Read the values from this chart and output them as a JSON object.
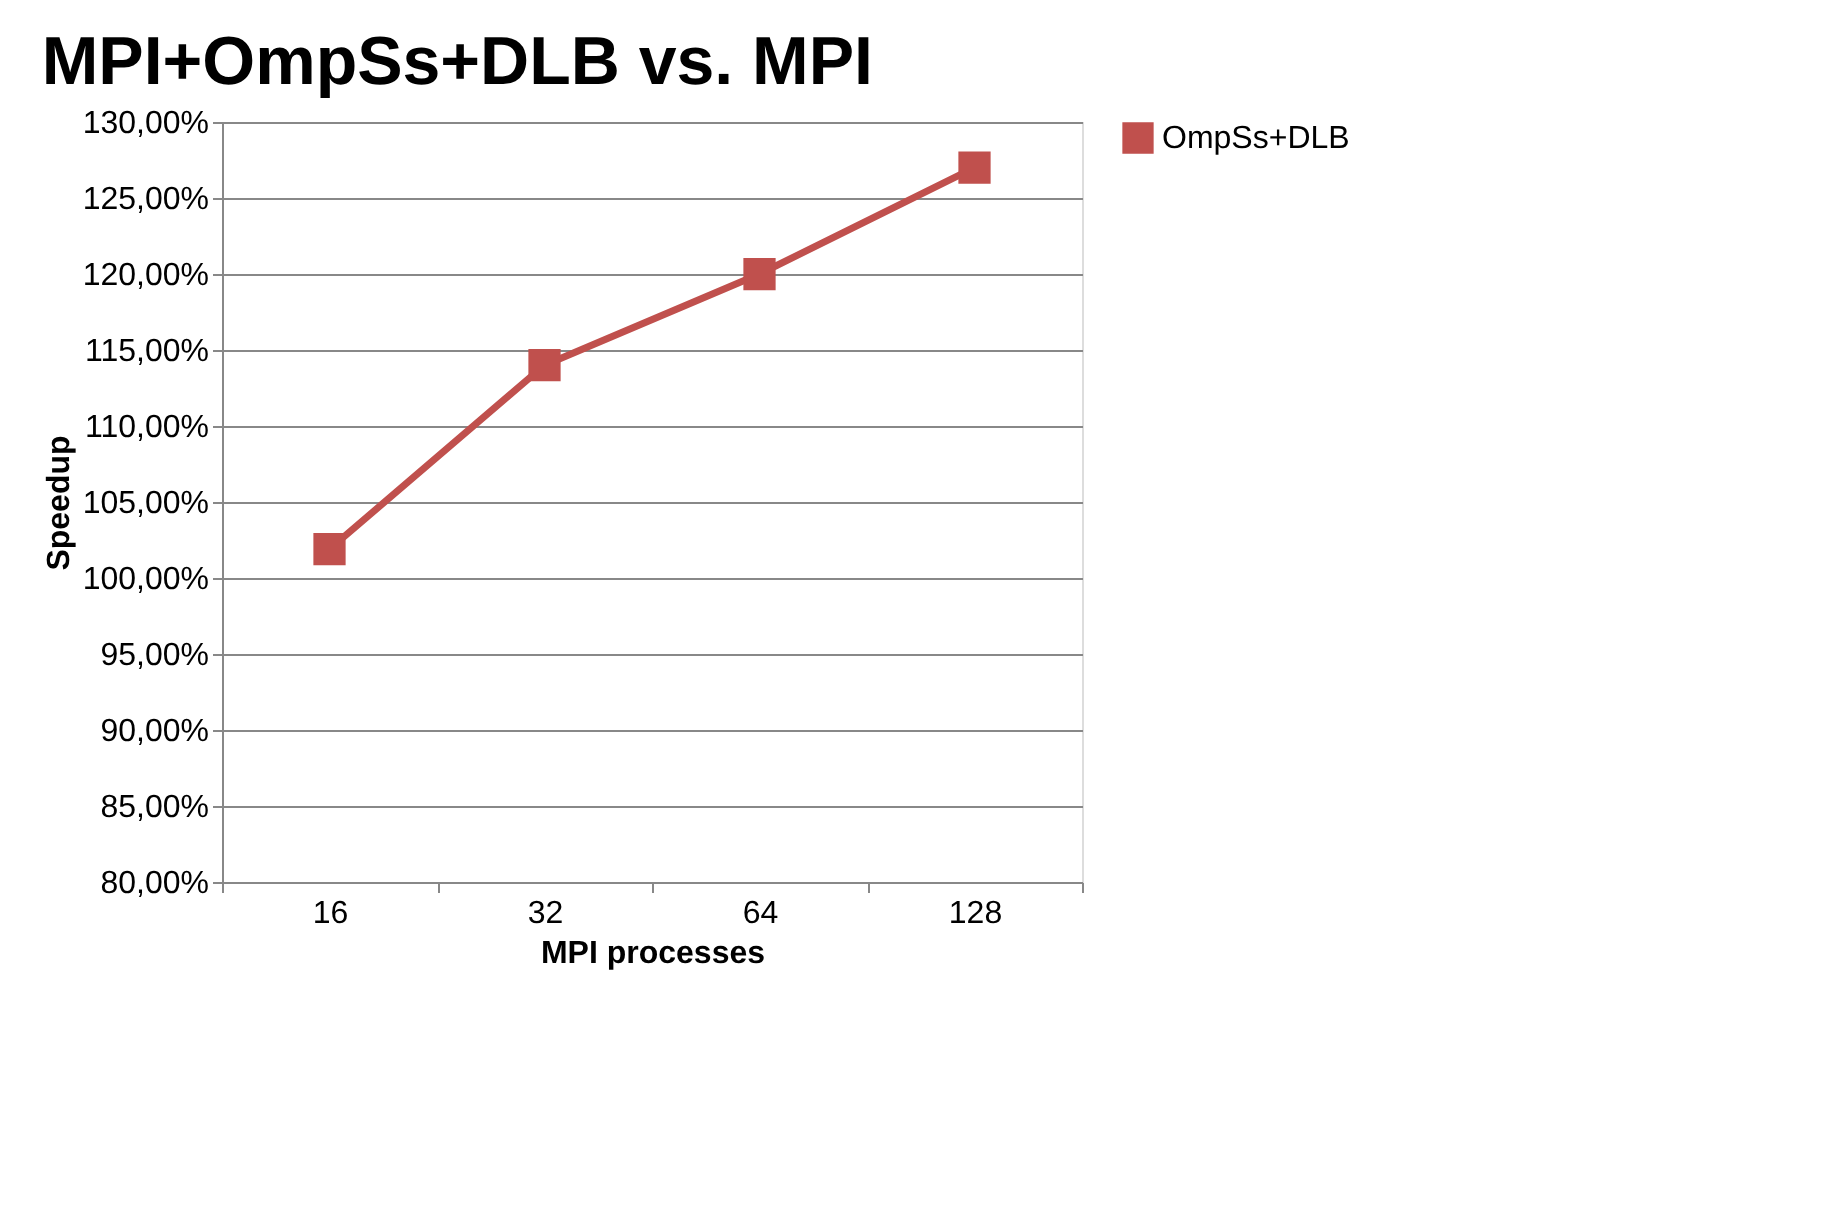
{
  "chart_data": {
    "type": "line",
    "title": "MPI+OmpSs+DLB vs. MPI",
    "xlabel": "MPI processes",
    "ylabel": "Speedup",
    "categories": [
      "16",
      "32",
      "64",
      "128"
    ],
    "series": [
      {
        "name": "OmpSs+DLB",
        "color": "#c0504d",
        "values": [
          101.9,
          114.0,
          120.0,
          127.0
        ]
      }
    ],
    "ylim": [
      80,
      130
    ],
    "yticks": [
      {
        "value": 80,
        "label": "80,00%"
      },
      {
        "value": 85,
        "label": "85,00%"
      },
      {
        "value": 90,
        "label": "90,00%"
      },
      {
        "value": 95,
        "label": "95,00%"
      },
      {
        "value": 100,
        "label": "100,00%"
      },
      {
        "value": 105,
        "label": "105,00%"
      },
      {
        "value": 110,
        "label": "110,00%"
      },
      {
        "value": 115,
        "label": "115,00%"
      },
      {
        "value": 120,
        "label": "120,00%"
      },
      {
        "value": 125,
        "label": "125,00%"
      },
      {
        "value": 130,
        "label": "130,00%"
      }
    ],
    "grid": "y",
    "legend": "right",
    "marker": "square",
    "line_style": "solid"
  }
}
